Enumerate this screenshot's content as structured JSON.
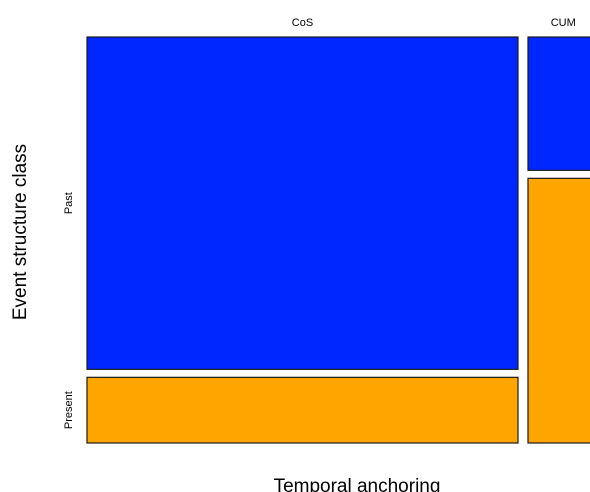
{
  "chart_data": {
    "type": "mosaic",
    "title": "",
    "xlabel": "Temporal anchoring",
    "ylabel": "Event structure class",
    "x_categories": [
      "CoS",
      "CUM"
    ],
    "y_categories": [
      "Past",
      "Present"
    ],
    "x_category_shares": [
      0.8595,
      0.1405
    ],
    "cells": [
      {
        "x": "CoS",
        "y": "Past",
        "proportion": 0.835,
        "color": "#0027FF"
      },
      {
        "x": "CoS",
        "y": "Present",
        "proportion": 0.165,
        "color": "#FFA500"
      },
      {
        "x": "CUM",
        "y": "Past",
        "proportion": 0.335,
        "color": "#0027FF"
      },
      {
        "x": "CUM",
        "y": "Present",
        "proportion": 0.665,
        "color": "#FFA500"
      }
    ],
    "colors": {
      "Past": "#0027FF",
      "Present": "#FFA500"
    },
    "grid": false,
    "legend": "none"
  }
}
